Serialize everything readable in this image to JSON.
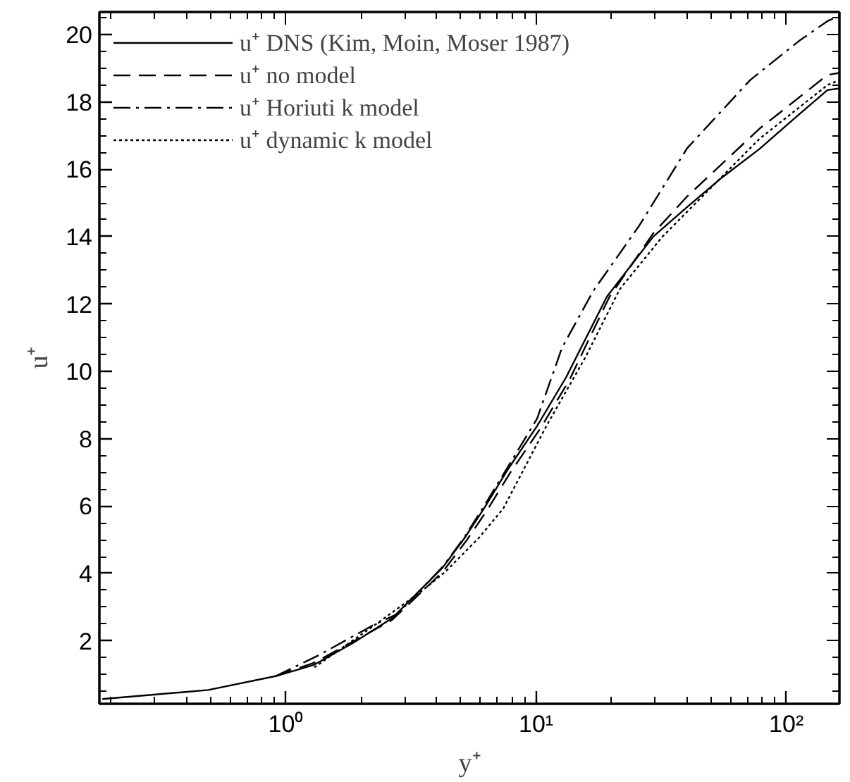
{
  "chart_data": {
    "type": "line",
    "xlabel": "y⁺",
    "ylabel": "u⁺",
    "log": "x",
    "legend": "top left",
    "grid": false,
    "xlim": [
      0.18,
      163
    ],
    "ylim": [
      0.13,
      20.67
    ],
    "xticks": [
      {
        "value": 1,
        "label": "10⁰"
      },
      {
        "value": 10,
        "label": "10¹"
      },
      {
        "value": 100,
        "label": "10²"
      }
    ],
    "yticks": [
      2,
      4,
      6,
      8,
      10,
      12,
      14,
      16,
      18,
      20
    ],
    "series": [
      {
        "name": "u⁺ DNS (Kim, Moin, Moser 1987)",
        "color": "#000000",
        "line_style": "solid",
        "x": [
          0.185,
          0.49,
          0.91,
          1.3,
          1.86,
          2.66,
          4.24,
          5.18,
          6.2,
          7.7,
          10.1,
          13.2,
          19.2,
          29.4,
          40,
          55,
          78,
          112,
          146,
          163
        ],
        "values": [
          0.27,
          0.54,
          0.95,
          1.29,
          1.94,
          2.67,
          4.18,
          5.05,
          5.93,
          7.08,
          8.38,
          9.83,
          12.22,
          14.0,
          14.87,
          15.74,
          16.6,
          17.62,
          18.35,
          18.4
        ]
      },
      {
        "name": "u⁺ no model",
        "color": "#000000",
        "line_style": "dashed",
        "x": [
          0.91,
          1.3,
          1.86,
          2.66,
          4.24,
          5.3,
          6.4,
          7.9,
          10.4,
          13.6,
          19.6,
          29.4,
          40,
          78,
          146,
          163
        ],
        "values": [
          0.95,
          1.35,
          1.98,
          2.62,
          4.05,
          5.0,
          5.9,
          7.0,
          8.3,
          9.75,
          12.2,
          14.1,
          15.18,
          17.2,
          18.8,
          18.86
        ]
      },
      {
        "name": "u⁺ Horiuti k model",
        "color": "#000000",
        "line_style": "dashdot",
        "x": [
          0.91,
          1.36,
          2.23,
          2.8,
          4.24,
          5.18,
          6.2,
          7.7,
          10.1,
          12.7,
          16.9,
          25.7,
          40.2,
          71.7,
          112,
          146,
          163
        ],
        "values": [
          0.95,
          1.58,
          2.46,
          2.8,
          4.2,
          5.08,
          6.0,
          7.15,
          8.6,
          10.7,
          12.38,
          14.3,
          16.63,
          18.65,
          19.8,
          20.4,
          20.55
        ]
      },
      {
        "name": "u⁺ dynamic k model",
        "color": "#000000",
        "line_style": "dotted",
        "x": [
          1.3,
          2.23,
          3.47,
          4.34,
          5.9,
          7.4,
          11.0,
          15.7,
          21.6,
          32,
          78,
          146,
          163
        ],
        "values": [
          1.21,
          2.43,
          3.46,
          4.05,
          5.05,
          5.93,
          8.38,
          10.4,
          12.44,
          14.0,
          16.9,
          18.5,
          18.65
        ]
      }
    ]
  }
}
